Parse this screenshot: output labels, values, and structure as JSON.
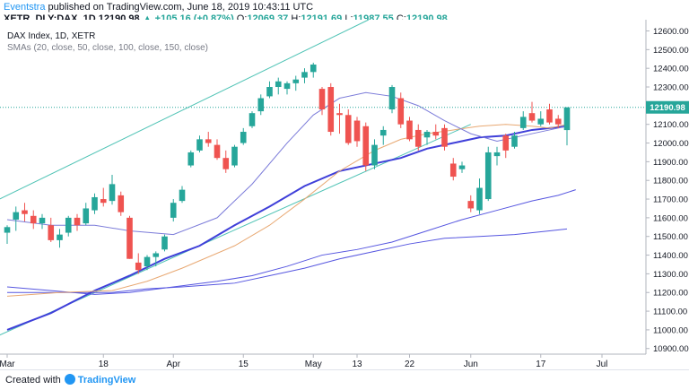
{
  "header": {
    "publisher": "Eventstra",
    "published_text": "published on TradingView.com, June 18, 2019 10:43:11 UTC",
    "symbol": "XETR_DLY:DAX, 1D",
    "last": "12190.98",
    "change": "▲ +105.16 (+0.87%)",
    "open_label": "O:",
    "open": "12069.37",
    "high_label": "H:",
    "high": "12191.69",
    "low_label": "L:",
    "low": "11987.55",
    "close_label": "C:",
    "close": "12190.98"
  },
  "legend": {
    "title": "DAX Index, 1D, XETR",
    "indicators": "SMAs (20, close, 50, close, 100, close, 150, close)"
  },
  "footer": {
    "created_with": "Created with",
    "brand": "TradingView"
  },
  "colors": {
    "up": "#26a69a",
    "down": "#ef5350",
    "sma20": "#7b7bd9",
    "sma50": "#e8a872",
    "sma100": "#3f3fd9",
    "sma150": "#5656e0",
    "channel": "#4fc3b5",
    "last_price_tag": "#26a69a"
  },
  "chart_data": {
    "type": "candlestick",
    "y_ticks": [
      10900,
      11000,
      11100,
      11200,
      11300,
      11400,
      11500,
      11600,
      11700,
      11800,
      11900,
      12000,
      12100,
      12200,
      12300,
      12400,
      12500,
      12600
    ],
    "y_range": [
      10870,
      12660
    ],
    "x_labels": [
      "Mar",
      "18",
      "Apr",
      "15",
      "May",
      "13",
      "22",
      "Jun",
      "17",
      "Jul"
    ],
    "x_label_bars": [
      0,
      11,
      19,
      27,
      35,
      40,
      46,
      53,
      61,
      68
    ],
    "last_price": "12190.98",
    "candles": [
      {
        "o": 11520,
        "h": 11560,
        "l": 11460,
        "c": 11550
      },
      {
        "o": 11590,
        "h": 11660,
        "l": 11530,
        "c": 11630
      },
      {
        "o": 11640,
        "h": 11680,
        "l": 11580,
        "c": 11620
      },
      {
        "o": 11610,
        "h": 11640,
        "l": 11540,
        "c": 11570
      },
      {
        "o": 11570,
        "h": 11620,
        "l": 11540,
        "c": 11600
      },
      {
        "o": 11560,
        "h": 11600,
        "l": 11470,
        "c": 11480
      },
      {
        "o": 11480,
        "h": 11540,
        "l": 11440,
        "c": 11510
      },
      {
        "o": 11520,
        "h": 11610,
        "l": 11500,
        "c": 11600
      },
      {
        "o": 11600,
        "h": 11620,
        "l": 11530,
        "c": 11560
      },
      {
        "o": 11570,
        "h": 11680,
        "l": 11560,
        "c": 11650
      },
      {
        "o": 11640,
        "h": 11730,
        "l": 11620,
        "c": 11710
      },
      {
        "o": 11700,
        "h": 11760,
        "l": 11660,
        "c": 11680
      },
      {
        "o": 11690,
        "h": 11830,
        "l": 11670,
        "c": 11780
      },
      {
        "o": 11720,
        "h": 11740,
        "l": 11610,
        "c": 11630
      },
      {
        "o": 11600,
        "h": 11610,
        "l": 11380,
        "c": 11380
      },
      {
        "o": 11360,
        "h": 11410,
        "l": 11300,
        "c": 11320
      },
      {
        "o": 11340,
        "h": 11400,
        "l": 11320,
        "c": 11390
      },
      {
        "o": 11390,
        "h": 11420,
        "l": 11340,
        "c": 11410
      },
      {
        "o": 11430,
        "h": 11510,
        "l": 11420,
        "c": 11500
      },
      {
        "o": 11600,
        "h": 11700,
        "l": 11580,
        "c": 11680
      },
      {
        "o": 11690,
        "h": 11770,
        "l": 11680,
        "c": 11750
      },
      {
        "o": 11880,
        "h": 11960,
        "l": 11870,
        "c": 11950
      },
      {
        "o": 11960,
        "h": 12040,
        "l": 11950,
        "c": 12020
      },
      {
        "o": 12020,
        "h": 12060,
        "l": 11980,
        "c": 12000
      },
      {
        "o": 11990,
        "h": 12020,
        "l": 11910,
        "c": 11920
      },
      {
        "o": 11920,
        "h": 11960,
        "l": 11840,
        "c": 11860
      },
      {
        "o": 11880,
        "h": 11990,
        "l": 11870,
        "c": 11980
      },
      {
        "o": 12000,
        "h": 12080,
        "l": 11990,
        "c": 12060
      },
      {
        "o": 12090,
        "h": 12170,
        "l": 12080,
        "c": 12160
      },
      {
        "o": 12170,
        "h": 12260,
        "l": 12150,
        "c": 12240
      },
      {
        "o": 12250,
        "h": 12330,
        "l": 12240,
        "c": 12300
      },
      {
        "o": 12300,
        "h": 12350,
        "l": 12260,
        "c": 12330
      },
      {
        "o": 12290,
        "h": 12330,
        "l": 12260,
        "c": 12320
      },
      {
        "o": 12320,
        "h": 12360,
        "l": 12280,
        "c": 12340
      },
      {
        "o": 12350,
        "h": 12400,
        "l": 12320,
        "c": 12380
      },
      {
        "o": 12380,
        "h": 12430,
        "l": 12350,
        "c": 12420
      },
      {
        "o": 12290,
        "h": 12300,
        "l": 12150,
        "c": 12180
      },
      {
        "o": 12300,
        "h": 12320,
        "l": 12040,
        "c": 12060
      },
      {
        "o": 12160,
        "h": 12210,
        "l": 12050,
        "c": 12150
      },
      {
        "o": 12150,
        "h": 12180,
        "l": 11990,
        "c": 12000
      },
      {
        "o": 12120,
        "h": 12140,
        "l": 11980,
        "c": 12010
      },
      {
        "o": 12090,
        "h": 12110,
        "l": 11850,
        "c": 11880
      },
      {
        "o": 11880,
        "h": 12020,
        "l": 11860,
        "c": 11990
      },
      {
        "o": 12040,
        "h": 12090,
        "l": 11990,
        "c": 12070
      },
      {
        "o": 12180,
        "h": 12310,
        "l": 12160,
        "c": 12300
      },
      {
        "o": 12240,
        "h": 12270,
        "l": 12080,
        "c": 12100
      },
      {
        "o": 12120,
        "h": 12140,
        "l": 12010,
        "c": 12020
      },
      {
        "o": 12070,
        "h": 12100,
        "l": 11960,
        "c": 11980
      },
      {
        "o": 12030,
        "h": 12070,
        "l": 11990,
        "c": 12060
      },
      {
        "o": 12060,
        "h": 12100,
        "l": 12020,
        "c": 12040
      },
      {
        "o": 12080,
        "h": 12100,
        "l": 11960,
        "c": 11980
      },
      {
        "o": 11890,
        "h": 11920,
        "l": 11800,
        "c": 11820
      },
      {
        "o": 11860,
        "h": 11900,
        "l": 11840,
        "c": 11880
      },
      {
        "o": 11690,
        "h": 11720,
        "l": 11630,
        "c": 11650
      },
      {
        "o": 11640,
        "h": 11810,
        "l": 11620,
        "c": 11760
      },
      {
        "o": 11700,
        "h": 11980,
        "l": 11690,
        "c": 11950
      },
      {
        "o": 11930,
        "h": 11980,
        "l": 11880,
        "c": 11950
      },
      {
        "o": 12040,
        "h": 12050,
        "l": 11920,
        "c": 11960
      },
      {
        "o": 11980,
        "h": 12060,
        "l": 11970,
        "c": 12040
      },
      {
        "o": 12080,
        "h": 12170,
        "l": 12070,
        "c": 12140
      },
      {
        "o": 12160,
        "h": 12220,
        "l": 12110,
        "c": 12120
      },
      {
        "o": 12100,
        "h": 12170,
        "l": 12090,
        "c": 12130
      },
      {
        "o": 12180,
        "h": 12210,
        "l": 12100,
        "c": 12110
      },
      {
        "o": 12130,
        "h": 12150,
        "l": 12080,
        "c": 12100
      },
      {
        "o": 12069.37,
        "h": 12191.69,
        "l": 11987.55,
        "c": 12190.98
      }
    ],
    "sma20": [
      [
        0,
        11590
      ],
      [
        5,
        11560
      ],
      [
        10,
        11560
      ],
      [
        14,
        11530
      ],
      [
        19,
        11510
      ],
      [
        24,
        11600
      ],
      [
        28,
        11780
      ],
      [
        32,
        12000
      ],
      [
        35,
        12150
      ],
      [
        38,
        12240
      ],
      [
        41,
        12270
      ],
      [
        44,
        12250
      ],
      [
        47,
        12200
      ],
      [
        50,
        12120
      ],
      [
        53,
        12050
      ],
      [
        56,
        12010
      ],
      [
        59,
        12040
      ],
      [
        62,
        12070
      ],
      [
        64,
        12090
      ]
    ],
    "sma50": [
      [
        0,
        11180
      ],
      [
        6,
        11200
      ],
      [
        12,
        11210
      ],
      [
        16,
        11260
      ],
      [
        20,
        11330
      ],
      [
        26,
        11450
      ],
      [
        30,
        11560
      ],
      [
        34,
        11700
      ],
      [
        38,
        11850
      ],
      [
        42,
        11960
      ],
      [
        45,
        12020
      ],
      [
        48,
        12050
      ],
      [
        51,
        12070
      ],
      [
        54,
        12090
      ],
      [
        57,
        12100
      ],
      [
        60,
        12090
      ],
      [
        62,
        12080
      ],
      [
        64,
        12100
      ]
    ],
    "sma100": [
      [
        0,
        11000
      ],
      [
        5,
        11090
      ],
      [
        10,
        11210
      ],
      [
        14,
        11290
      ],
      [
        18,
        11380
      ],
      [
        22,
        11450
      ],
      [
        26,
        11560
      ],
      [
        30,
        11660
      ],
      [
        34,
        11770
      ],
      [
        38,
        11850
      ],
      [
        42,
        11890
      ],
      [
        45,
        11920
      ],
      [
        48,
        11970
      ],
      [
        51,
        12000
      ],
      [
        54,
        12030
      ],
      [
        57,
        12040
      ],
      [
        60,
        12070
      ],
      [
        62,
        12080
      ],
      [
        64,
        12090
      ]
    ],
    "sma150": [
      [
        0,
        11230
      ],
      [
        5,
        11210
      ],
      [
        10,
        11190
      ],
      [
        14,
        11200
      ],
      [
        19,
        11230
      ],
      [
        24,
        11260
      ],
      [
        28,
        11290
      ],
      [
        32,
        11340
      ],
      [
        36,
        11400
      ],
      [
        40,
        11430
      ],
      [
        44,
        11470
      ],
      [
        48,
        11530
      ],
      [
        52,
        11590
      ],
      [
        56,
        11640
      ],
      [
        60,
        11690
      ],
      [
        63,
        11720
      ],
      [
        65,
        11750
      ]
    ],
    "sma_extra_low": [
      [
        0,
        11200
      ],
      [
        6,
        11200
      ],
      [
        12,
        11200
      ],
      [
        16,
        11220
      ],
      [
        20,
        11230
      ],
      [
        26,
        11250
      ],
      [
        30,
        11290
      ],
      [
        34,
        11330
      ],
      [
        38,
        11380
      ],
      [
        42,
        11420
      ],
      [
        46,
        11460
      ],
      [
        50,
        11490
      ],
      [
        54,
        11500
      ],
      [
        58,
        11510
      ],
      [
        62,
        11530
      ],
      [
        64,
        11540
      ]
    ],
    "channel_upper": [
      [
        0,
        11720
      ],
      [
        40,
        12630
      ]
    ],
    "channel_lower": [
      [
        0,
        10990
      ],
      [
        53,
        12100
      ]
    ]
  }
}
